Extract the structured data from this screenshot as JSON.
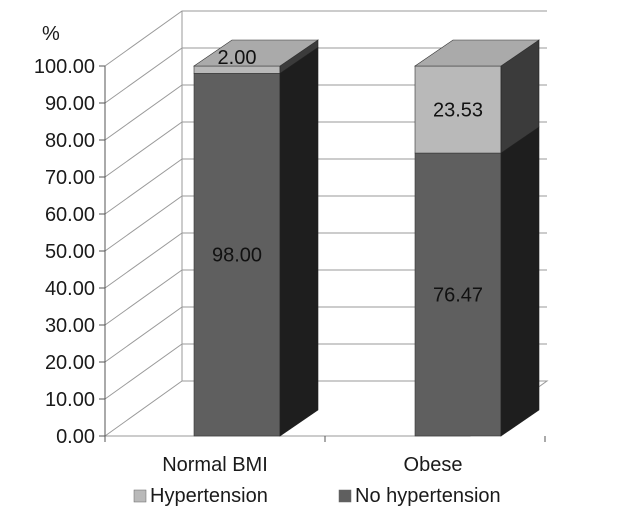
{
  "chart_data": {
    "type": "bar",
    "stacked": true,
    "three_d": true,
    "categories": [
      "Normal BMI",
      "Obese"
    ],
    "series": [
      {
        "name": "No hypertension",
        "values": [
          98.0,
          76.47
        ],
        "color": "#5f5f5f"
      },
      {
        "name": "Hypertension",
        "values": [
          2.0,
          23.53
        ],
        "color": "#b9b9b9"
      }
    ],
    "ylabel": "%",
    "ylim": [
      0,
      100
    ],
    "yticks": [
      "0.00",
      "10.00",
      "20.00",
      "30.00",
      "40.00",
      "50.00",
      "60.00",
      "70.00",
      "80.00",
      "90.00",
      "100.00"
    ],
    "grid": true,
    "legend": {
      "position": "bottom",
      "entries": [
        "Hypertension",
        "No hypertension"
      ]
    }
  }
}
